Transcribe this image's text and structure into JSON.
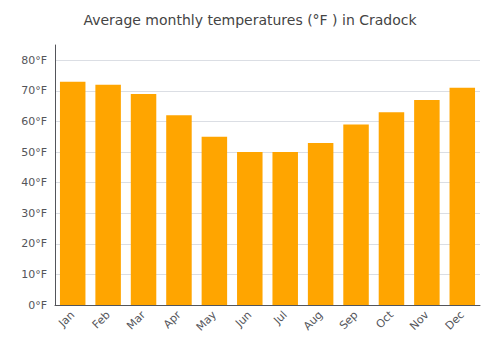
{
  "chart_data": {
    "type": "bar",
    "title": "Average monthly temperatures (°F ) in Cradock",
    "categories": [
      "Jan",
      "Feb",
      "Mar",
      "Apr",
      "May",
      "Jun",
      "Jul",
      "Aug",
      "Sep",
      "Oct",
      "Nov",
      "Dec"
    ],
    "values": [
      73,
      72,
      69,
      62,
      55,
      50,
      50,
      53,
      59,
      63,
      67,
      71
    ],
    "color": "#FFA500",
    "ylim": [
      0,
      85
    ],
    "yticks": [
      {
        "value": 0,
        "label": "0°F"
      },
      {
        "value": 10,
        "label": "10°F"
      },
      {
        "value": 20,
        "label": "20°F"
      },
      {
        "value": 30,
        "label": "30°F"
      },
      {
        "value": 40,
        "label": "40°F"
      },
      {
        "value": 50,
        "label": "50°F"
      },
      {
        "value": 60,
        "label": "60°F"
      },
      {
        "value": 70,
        "label": "70°F"
      },
      {
        "value": 80,
        "label": "80°F"
      }
    ],
    "grid": true
  }
}
